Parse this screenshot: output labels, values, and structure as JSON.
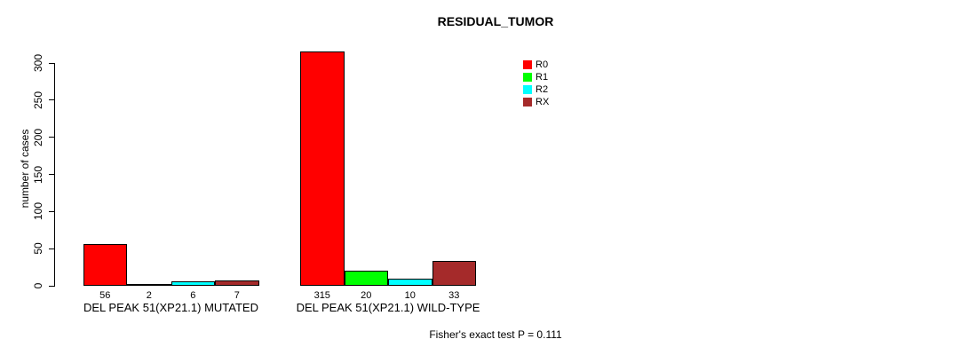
{
  "chart_data": {
    "type": "bar",
    "title": "RESIDUAL_TUMOR",
    "ylabel": "number of cases",
    "ylim": [
      0,
      300
    ],
    "yticks": [
      0,
      50,
      100,
      150,
      200,
      250,
      300
    ],
    "categories": [
      "DEL PEAK 51(XP21.1) MUTATED",
      "DEL PEAK 51(XP21.1) WILD-TYPE"
    ],
    "series": [
      {
        "name": "R0",
        "color": "#ff0000",
        "values": [
          56,
          315
        ]
      },
      {
        "name": "R1",
        "color": "#00ff00",
        "values": [
          2,
          20
        ]
      },
      {
        "name": "R2",
        "color": "#00ffff",
        "values": [
          6,
          10
        ]
      },
      {
        "name": "RX",
        "color": "#a52a2a",
        "values": [
          7,
          33
        ]
      }
    ],
    "bar_value_labels_shown": true,
    "legend_position": "top-right",
    "grid": false,
    "annotation": "Fisher's exact test P = 0.111"
  }
}
